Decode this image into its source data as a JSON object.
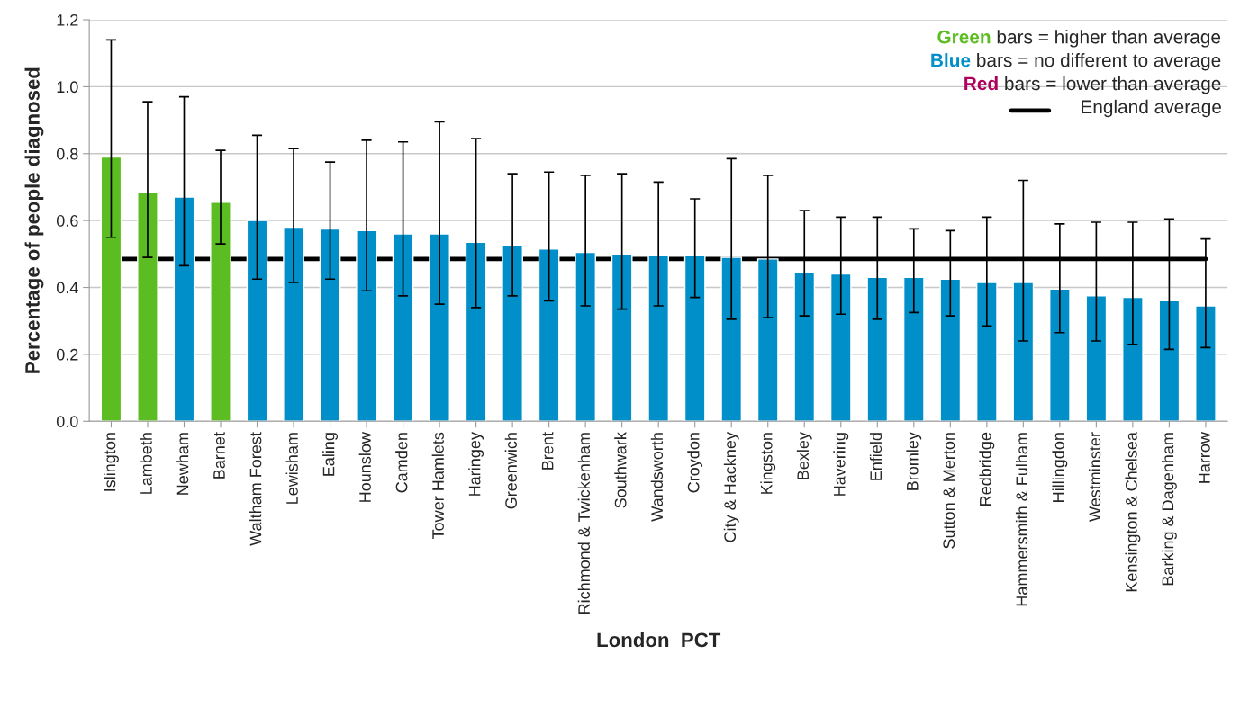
{
  "chart_data": {
    "type": "bar",
    "ylabel": "Percentage of people diagnosed",
    "xlabel": "London  PCT",
    "categories": [
      "Islington",
      "Lambeth",
      "Newham",
      "Barnet",
      "Waltham Forest",
      "Lewisham",
      "Ealing",
      "Hounslow",
      "Camden",
      "Tower Hamlets",
      "Haringey",
      "Greenwich",
      "Brent",
      "Richmond & Twickenham",
      "Southwark",
      "Wandsworth",
      "Croydon",
      "City & Hackney",
      "Kingston",
      "Bexley",
      "Havering",
      "Enfield",
      "Bromley",
      "Sutton & Merton",
      "Redbridge",
      "Hammersmith & Fulham",
      "Hillingdon",
      "Westminster",
      "Kensington & Chelsea",
      "Barking & Dagenham",
      "Harrow"
    ],
    "series": [
      {
        "name": "Green bars = higher than average",
        "color": "#5cbd22",
        "values": [
          0.79,
          0.685,
          null,
          0.655,
          null,
          null,
          null,
          null,
          null,
          null,
          null,
          null,
          null,
          null,
          null,
          null,
          null,
          null,
          null,
          null,
          null,
          null,
          null,
          null,
          null,
          null,
          null,
          null,
          null,
          null,
          null
        ],
        "errors": [
          [
            0.55,
            1.14
          ],
          [
            0.49,
            0.955
          ],
          null,
          [
            0.53,
            0.81
          ],
          null,
          null,
          null,
          null,
          null,
          null,
          null,
          null,
          null,
          null,
          null,
          null,
          null,
          null,
          null,
          null,
          null,
          null,
          null,
          null,
          null,
          null,
          null,
          null,
          null,
          null,
          null
        ]
      },
      {
        "name": "Blue bars = no different to average",
        "color": "#008fc8",
        "values": [
          null,
          null,
          0.67,
          null,
          0.6,
          0.58,
          0.575,
          0.57,
          0.56,
          0.56,
          0.535,
          0.525,
          0.515,
          0.505,
          0.5,
          0.495,
          0.495,
          0.49,
          0.485,
          0.445,
          0.44,
          0.43,
          0.43,
          0.425,
          0.415,
          0.415,
          0.395,
          0.375,
          0.37,
          0.36,
          0.345
        ],
        "errors": [
          null,
          null,
          [
            0.465,
            0.97
          ],
          null,
          [
            0.425,
            0.855
          ],
          [
            0.415,
            0.815
          ],
          [
            0.425,
            0.775
          ],
          [
            0.39,
            0.84
          ],
          [
            0.375,
            0.835
          ],
          [
            0.35,
            0.895
          ],
          [
            0.34,
            0.845
          ],
          [
            0.375,
            0.74
          ],
          [
            0.36,
            0.745
          ],
          [
            0.345,
            0.735
          ],
          [
            0.335,
            0.74
          ],
          [
            0.345,
            0.715
          ],
          [
            0.37,
            0.665
          ],
          [
            0.305,
            0.785
          ],
          [
            0.31,
            0.735
          ],
          [
            0.315,
            0.63
          ],
          [
            0.32,
            0.61
          ],
          [
            0.305,
            0.61
          ],
          [
            0.325,
            0.575
          ],
          [
            0.315,
            0.57
          ],
          [
            0.285,
            0.61
          ],
          [
            0.24,
            0.72
          ],
          [
            0.265,
            0.59
          ],
          [
            0.24,
            0.595
          ],
          [
            0.23,
            0.595
          ],
          [
            0.215,
            0.605
          ],
          [
            0.22,
            0.545
          ]
        ]
      },
      {
        "name": "Red bars = lower than average",
        "color": "#b0005d",
        "values": [
          null,
          null,
          null,
          null,
          null,
          null,
          null,
          null,
          null,
          null,
          null,
          null,
          null,
          null,
          null,
          null,
          null,
          null,
          null,
          null,
          null,
          null,
          null,
          null,
          null,
          null,
          null,
          null,
          null,
          null,
          null
        ]
      }
    ],
    "ref_lines": [
      {
        "axis": "y",
        "value": 0.485,
        "label": "England average",
        "color": "#000000"
      }
    ],
    "ylim": [
      0,
      1.2
    ],
    "yticks": [
      {
        "value": 0,
        "label": "0.0"
      },
      {
        "value": 0.2,
        "label": "0.2"
      },
      {
        "value": 0.4,
        "label": "0.4"
      },
      {
        "value": 0.6,
        "label": "0.6"
      },
      {
        "value": 0.8,
        "label": "0.8"
      },
      {
        "value": 1.0,
        "label": "1.0"
      },
      {
        "value": 1.2,
        "label": "1.2"
      }
    ],
    "grid": "y",
    "legend": "top right"
  }
}
